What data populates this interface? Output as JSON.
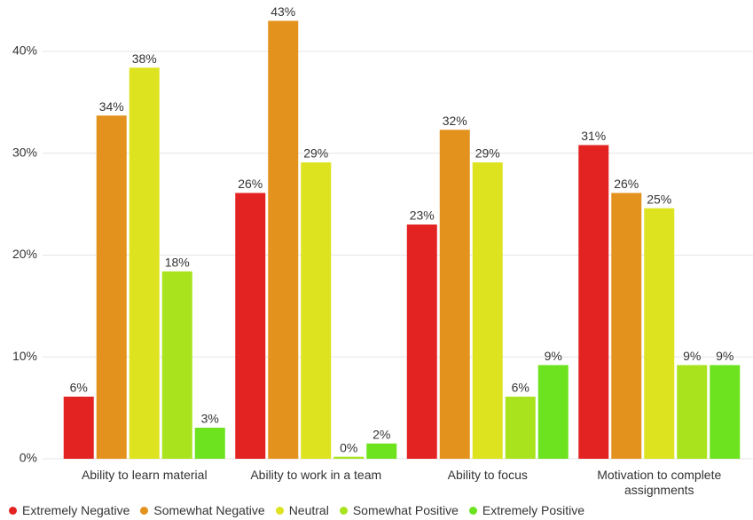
{
  "chart_data": {
    "type": "bar",
    "categories": [
      "Ability to learn material",
      "Ability to work in a team",
      "Ability to focus",
      "Motivation to complete assignments"
    ],
    "series": [
      {
        "name": "Extremely Negative",
        "color": "#e32222",
        "values": [
          6.1,
          26.1,
          23.0,
          30.8
        ],
        "value_labels": [
          "6%",
          "26%",
          "23%",
          "31%"
        ]
      },
      {
        "name": "Somewhat Negative",
        "color": "#e3921e",
        "values": [
          33.7,
          43.0,
          32.3,
          26.1
        ],
        "value_labels": [
          "34%",
          "43%",
          "32%",
          "26%"
        ]
      },
      {
        "name": "Neutral",
        "color": "#dde31e",
        "values": [
          38.4,
          29.1,
          29.1,
          24.6
        ],
        "value_labels": [
          "38%",
          "29%",
          "29%",
          "25%"
        ]
      },
      {
        "name": "Somewhat Positive",
        "color": "#a9e31e",
        "values": [
          18.4,
          0.2,
          6.1,
          9.2
        ],
        "value_labels": [
          "18%",
          "0%",
          "6%",
          "9%"
        ]
      },
      {
        "name": "Extremely Positive",
        "color": "#6ce31e",
        "values": [
          3.05,
          1.5,
          9.2,
          9.2
        ],
        "value_labels": [
          "3%",
          "2%",
          "9%",
          "9%"
        ]
      }
    ],
    "ylim": [
      0,
      44
    ],
    "yticks": [
      {
        "value": 0,
        "label": "0%"
      },
      {
        "value": 10,
        "label": "10%"
      },
      {
        "value": 20,
        "label": "20%"
      },
      {
        "value": 30,
        "label": "30%"
      },
      {
        "value": 40,
        "label": "40%"
      }
    ],
    "grid": true
  }
}
